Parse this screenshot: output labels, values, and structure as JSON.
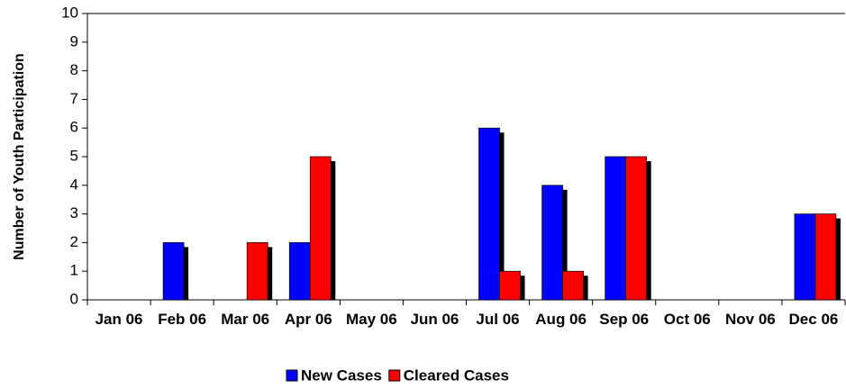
{
  "chart_data": {
    "type": "bar",
    "y_label": "Number of Youth Participation",
    "categories": [
      "Jan 06",
      "Feb 06",
      "Mar 06",
      "Apr 06",
      "May 06",
      "Jun 06",
      "Jul 06",
      "Aug 06",
      "Sep 06",
      "Oct 06",
      "Nov 06",
      "Dec 06"
    ],
    "series": [
      {
        "name": "New Cases",
        "color": "#0000ff",
        "values": [
          0,
          2,
          0,
          2,
          0,
          0,
          6,
          4,
          5,
          0,
          0,
          3
        ]
      },
      {
        "name": "Cleared Cases",
        "color": "#ff0000",
        "values": [
          0,
          0,
          2,
          5,
          0,
          0,
          1,
          1,
          5,
          0,
          0,
          3
        ]
      }
    ],
    "ylim": [
      0,
      10
    ],
    "yticks": [
      0,
      1,
      2,
      3,
      4,
      5,
      6,
      7,
      8,
      9,
      10
    ],
    "grid": false
  }
}
